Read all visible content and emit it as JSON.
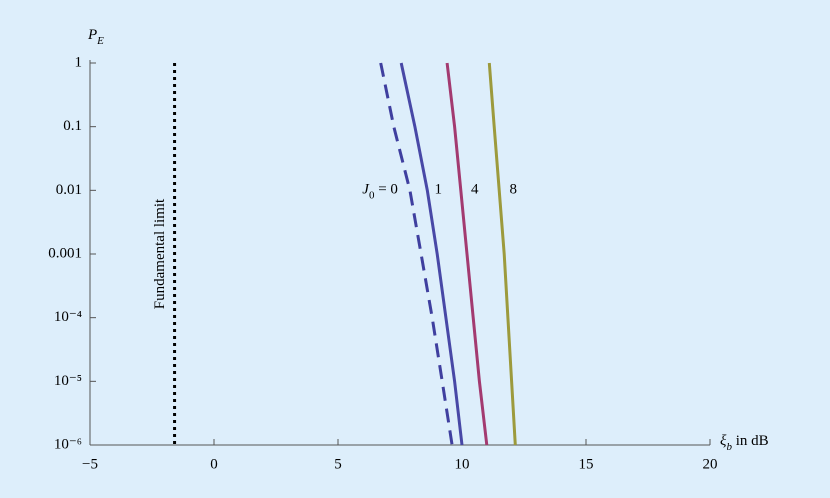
{
  "chart_data": {
    "type": "line",
    "y_label": {
      "base": "P",
      "sub": "E"
    },
    "x_label": {
      "base": "ξ",
      "sub": "b",
      "text": " in dB"
    },
    "series_label_prefix": {
      "base": "J",
      "sub": "0",
      "text": " = "
    },
    "log_y": true,
    "xlim": [
      -5,
      20
    ],
    "ylim": [
      1e-06,
      1
    ],
    "xticks": [
      {
        "value": -5,
        "label": "−5"
      },
      0,
      5,
      10,
      15,
      20
    ],
    "yticks": [
      1,
      0.1,
      0.01,
      0.001,
      {
        "value": 0.0001,
        "label": "10⁻⁴"
      },
      {
        "value": 1e-05,
        "label": "10⁻⁵"
      },
      {
        "value": 1e-06,
        "label": "10⁻⁶"
      }
    ],
    "limit": {
      "label": "Fundamental limit",
      "x": -1.59,
      "color": "#000000"
    },
    "series": [
      {
        "name": "0",
        "color": "#3f3f9f",
        "dashed": true,
        "x": [
          6.72,
          7.25,
          7.9,
          8.35,
          8.8,
          9.2,
          9.6
        ],
        "values": [
          1,
          0.1,
          0.01,
          0.001,
          0.0001,
          1e-05,
          1e-06
        ]
      },
      {
        "name": "1",
        "color": "#4848a6",
        "dashed": false,
        "x": [
          7.55,
          8.1,
          8.6,
          9.0,
          9.35,
          9.7,
          10.0
        ],
        "values": [
          1,
          0.1,
          0.01,
          0.001,
          0.0001,
          1e-05,
          1e-06
        ]
      },
      {
        "name": "4",
        "color": "#a33a70",
        "dashed": false,
        "x": [
          9.4,
          9.7,
          9.95,
          10.2,
          10.45,
          10.7,
          11.0
        ],
        "values": [
          1,
          0.1,
          0.01,
          0.001,
          0.0001,
          1e-05,
          1e-06
        ]
      },
      {
        "name": "8",
        "color": "#9c9a3c",
        "dashed": false,
        "x": [
          11.1,
          11.3,
          11.5,
          11.7,
          11.85,
          12.0,
          12.15
        ],
        "values": [
          1,
          0.1,
          0.01,
          0.001,
          0.0001,
          1e-05,
          1e-06
        ]
      }
    ]
  }
}
